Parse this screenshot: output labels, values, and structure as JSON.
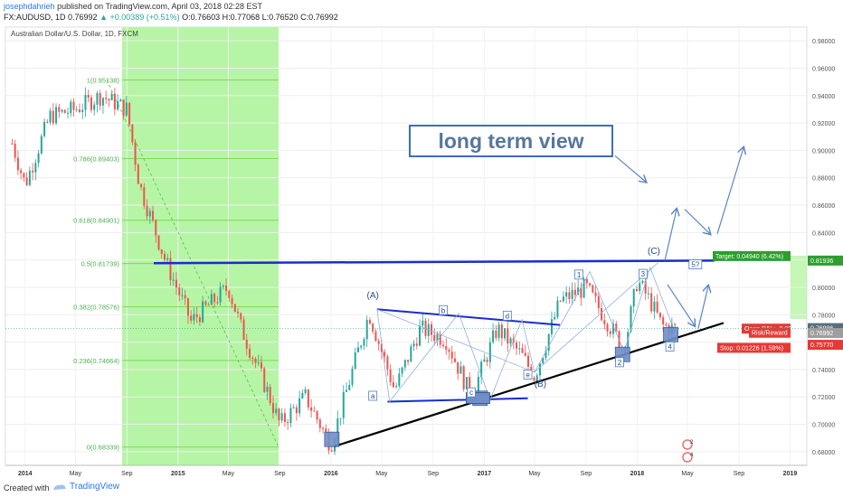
{
  "header": {
    "author": "josephdahrieh",
    "published_text": "published on TradingView.com, April 03, 2018 02:28 EST",
    "symbol_line_prefix": "FX:AUDUSD, 1D",
    "last": "0.76992",
    "change": "▲ +0.00389 (+0.51%)",
    "ohlc": "O:0.76603 H:0.77068 L:0.76520 C:0.76992"
  },
  "chart_title": "Australian Dollar/U.S. Dollar, 1D, FXCM",
  "annotation_box": "long term view",
  "footer": {
    "created_with": "Created with",
    "brand": "TradingView"
  },
  "colors": {
    "candle_up": "#26a69a",
    "candle_down": "#ef5350",
    "fib_line": "#7ed957",
    "fib_text": "#4caf50",
    "highlight_zone": "#b6f5a5",
    "trend_blue": "#1a2ccf",
    "arrow_blue": "#5a86c8",
    "target_green": "#2e9e2e",
    "stop_red": "#e53935",
    "label_box": "#4a7dc4"
  },
  "icons": [
    "tradingview-logo-icon",
    "arrow-icon",
    "up-triangle-icon"
  ],
  "chart_data": {
    "type": "candlestick",
    "x_axis_labels": [
      "2014",
      "May",
      "Sep",
      "2015",
      "May",
      "Sep",
      "2016",
      "May",
      "Sep",
      "2017",
      "May",
      "Sep",
      "2018",
      "May",
      "Sep",
      "2019"
    ],
    "y_axis_labels": [
      "0.98000",
      "0.96000",
      "0.94000",
      "0.92000",
      "0.90000",
      "0.88000",
      "0.86000",
      "0.84000",
      "0.82000",
      "0.80000",
      "0.78000",
      "0.76000",
      "0.74000",
      "0.72000",
      "0.70000",
      "0.68000"
    ],
    "ylim": [
      0.67,
      0.99
    ],
    "price_path": [
      {
        "t": "2013-12",
        "v": 0.905
      },
      {
        "t": "2014-01",
        "v": 0.875
      },
      {
        "t": "2014-03",
        "v": 0.925
      },
      {
        "t": "2014-05",
        "v": 0.93
      },
      {
        "t": "2014-07",
        "v": 0.94
      },
      {
        "t": "2014-09",
        "v": 0.93
      },
      {
        "t": "2014-10",
        "v": 0.875
      },
      {
        "t": "2014-12",
        "v": 0.82
      },
      {
        "t": "2015-02",
        "v": 0.775
      },
      {
        "t": "2015-05",
        "v": 0.8
      },
      {
        "t": "2015-06",
        "v": 0.77
      },
      {
        "t": "2015-08",
        "v": 0.725
      },
      {
        "t": "2015-09",
        "v": 0.7
      },
      {
        "t": "2015-11",
        "v": 0.72
      },
      {
        "t": "2016-01",
        "v": 0.685
      },
      {
        "t": "2016-04",
        "v": 0.781
      },
      {
        "t": "2016-06",
        "v": 0.725
      },
      {
        "t": "2016-08",
        "v": 0.77
      },
      {
        "t": "2016-10",
        "v": 0.762
      },
      {
        "t": "2016-12",
        "v": 0.72
      },
      {
        "t": "2017-02",
        "v": 0.77
      },
      {
        "t": "2017-04",
        "v": 0.75
      },
      {
        "t": "2017-05",
        "v": 0.735
      },
      {
        "t": "2017-07",
        "v": 0.79
      },
      {
        "t": "2017-09",
        "v": 0.8
      },
      {
        "t": "2017-12",
        "v": 0.755
      },
      {
        "t": "2018-01",
        "v": 0.805
      },
      {
        "t": "2018-02",
        "v": 0.79
      },
      {
        "t": "2018-03",
        "v": 0.772
      },
      {
        "t": "2018-04",
        "v": 0.7699
      }
    ],
    "fib_levels": [
      {
        "label": "1(0.95138)",
        "value": 0.95138
      },
      {
        "label": "0.786(0.89403)",
        "value": 0.89403
      },
      {
        "label": "0.618(0.84901)",
        "value": 0.84901
      },
      {
        "label": "0.5(0.81739)",
        "value": 0.81739
      },
      {
        "label": "0.382(0.78576)",
        "value": 0.78576
      },
      {
        "label": "0.236(0.74664)",
        "value": 0.74664
      },
      {
        "label": "0(0.68339)",
        "value": 0.68339
      }
    ],
    "wave_labels": [
      "(A)",
      "(B)",
      "(C)",
      "a",
      "b",
      "c",
      "d",
      "e",
      "1",
      "2",
      "3",
      "4",
      "5?"
    ],
    "price_tags": {
      "target": "Target: 0.04940 (6.42%)",
      "target_price": "0.81936",
      "open_pl": "Open P&L: -0.000",
      "risk_reward": "Risk/Reward",
      "current_price": "0.76996",
      "current_price2": "0.76992",
      "stop": "Stop: 0.01226 (1.59%)",
      "stop_price": "0.75770"
    },
    "event_badges": [
      "2",
      "4"
    ]
  }
}
